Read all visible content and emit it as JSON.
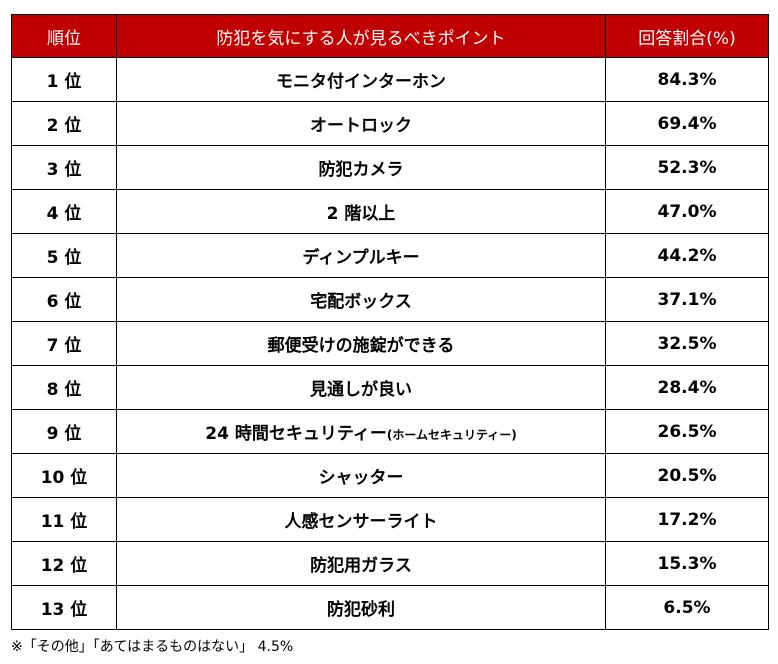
{
  "header": {
    "rank": "順位",
    "item": "防犯を気にする人が見るべきポイント",
    "rate": "回答割合(%)"
  },
  "rows": [
    {
      "rank": "1 位",
      "item": "モニタ付インターホン",
      "note": "",
      "rate": "84.3%"
    },
    {
      "rank": "2 位",
      "item": "オートロック",
      "note": "",
      "rate": "69.4%"
    },
    {
      "rank": "3 位",
      "item": "防犯カメラ",
      "note": "",
      "rate": "52.3%"
    },
    {
      "rank": "4 位",
      "item": "2 階以上",
      "note": "",
      "rate": "47.0%"
    },
    {
      "rank": "5 位",
      "item": "ディンプルキー",
      "note": "",
      "rate": "44.2%"
    },
    {
      "rank": "6 位",
      "item": "宅配ボックス",
      "note": "",
      "rate": "37.1%"
    },
    {
      "rank": "7 位",
      "item": "郵便受けの施錠ができる",
      "note": "",
      "rate": "32.5%"
    },
    {
      "rank": "8 位",
      "item": "見通しが良い",
      "note": "",
      "rate": "28.4%"
    },
    {
      "rank": "9 位",
      "item": "24 時間セキュリティー",
      "note": "(ホームセキュリティー)",
      "rate": "26.5%"
    },
    {
      "rank": "10 位",
      "item": "シャッター",
      "note": "",
      "rate": "20.5%"
    },
    {
      "rank": "11 位",
      "item": "人感センサーライト",
      "note": "",
      "rate": "17.2%"
    },
    {
      "rank": "12 位",
      "item": "防犯用ガラス",
      "note": "",
      "rate": "15.3%"
    },
    {
      "rank": "13 位",
      "item": "防犯砂利",
      "note": "",
      "rate": "6.5%"
    }
  ],
  "footnote": "※「その他」「あてはまるものはない」 4.5%"
}
